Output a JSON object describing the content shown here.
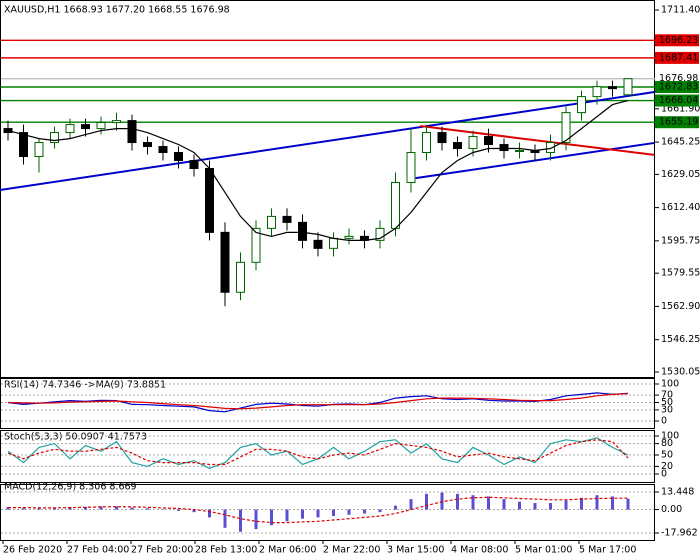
{
  "chart_data": [
    {
      "type": "candlestick",
      "title": "XAUUSD,H1  1668.93 1677.20 1668.55 1676.98",
      "up_color": "#006400",
      "down_color": "#000000",
      "open": [
        1652,
        1650,
        1638,
        1645,
        1650,
        1654,
        1652,
        1655,
        1656,
        1645,
        1643,
        1640,
        1636,
        1632,
        1600,
        1570,
        1585,
        1602,
        1608,
        1605,
        1596,
        1592,
        1597,
        1598,
        1596,
        1602,
        1625,
        1640,
        1650,
        1645,
        1642,
        1648,
        1644,
        1641,
        1641,
        1640,
        1645,
        1660,
        1668,
        1673,
        1668.93
      ],
      "high": [
        1656,
        1654,
        1647,
        1653,
        1657,
        1657,
        1658,
        1660,
        1659,
        1648,
        1646,
        1643,
        1639,
        1636,
        1605,
        1590,
        1606,
        1612,
        1612,
        1609,
        1600,
        1600,
        1602,
        1601,
        1606,
        1630,
        1652,
        1654,
        1653,
        1648,
        1651,
        1652,
        1647,
        1645,
        1644,
        1649,
        1663,
        1671,
        1676,
        1676,
        1677.2
      ],
      "low": [
        1646,
        1634,
        1630,
        1642,
        1647,
        1648,
        1649,
        1651,
        1641,
        1639,
        1636,
        1632,
        1628,
        1596,
        1563,
        1566,
        1581,
        1598,
        1601,
        1592,
        1588,
        1588,
        1594,
        1592,
        1592,
        1598,
        1620,
        1636,
        1641,
        1638,
        1638,
        1640,
        1637,
        1637,
        1636,
        1636,
        1641,
        1656,
        1664,
        1668,
        1668.55
      ],
      "close": [
        1650,
        1638,
        1645,
        1650,
        1654,
        1652,
        1655,
        1656,
        1645,
        1643,
        1640,
        1636,
        1632,
        1600,
        1570,
        1585,
        1602,
        1608,
        1605,
        1596,
        1592,
        1597,
        1598,
        1596,
        1602,
        1625,
        1640,
        1650,
        1645,
        1642,
        1648,
        1644,
        1641,
        1641,
        1640,
        1645,
        1660,
        1668,
        1673,
        1672,
        1676.98
      ],
      "ma": {
        "color": "#000000",
        "values": [
          1651,
          1649,
          1647,
          1646,
          1647,
          1649,
          1651,
          1652,
          1652,
          1650,
          1647,
          1644,
          1640,
          1632,
          1620,
          1608,
          1600,
          1598,
          1600,
          1600,
          1599,
          1597,
          1596,
          1596,
          1597,
          1602,
          1610,
          1620,
          1630,
          1636,
          1640,
          1642,
          1642,
          1642,
          1641,
          1642,
          1646,
          1652,
          1658,
          1664,
          1666
        ]
      },
      "trendlines": [
        {
          "color": "#0000cc",
          "x": [
            -0.52,
            41.7
          ],
          "y": [
            1621.2,
            1670.3
          ]
        },
        {
          "color": "#0000cc",
          "x": [
            26.3,
            41.7
          ],
          "y": [
            1627.2,
            1644.8
          ]
        },
        {
          "color": "#dd0000",
          "x": [
            26.6,
            41.7
          ],
          "y": [
            1653.3,
            1638.8
          ]
        }
      ],
      "levels": [
        {
          "value": 1696.23,
          "color": "#e00000"
        },
        {
          "value": 1687.41,
          "color": "#e00000"
        },
        {
          "value": 1676.98,
          "color": "#c0c0c0"
        },
        {
          "value": 1672.83,
          "color": "#008000"
        },
        {
          "value": 1666.04,
          "color": "#008000"
        },
        {
          "value": 1655.19,
          "color": "#008000"
        }
      ],
      "ylim": [
        1530.05,
        1711.4
      ],
      "yticks": [
        {
          "value": 1711.4,
          "label": "1711.40"
        },
        {
          "value": 1661.9,
          "label": "1661.90"
        },
        1645.25,
        1629.05,
        {
          "value": 1612.4,
          "label": "1612.40"
        },
        1595.75,
        1579.55,
        {
          "value": 1562.9,
          "label": "1562.90"
        },
        1546.25,
        1530.05
      ],
      "x_labels": [
        "26 Feb 2020",
        "27 Feb 04:00",
        "27 Feb 20:00",
        "28 Feb 13:00",
        "2 Mar 06:00",
        "2 Mar 22:00",
        "3 Mar 15:00",
        "4 Mar 08:00",
        "5 Mar 01:00",
        "5 Mar 17:00"
      ]
    },
    {
      "type": "line",
      "title": "RSI(14) 74.7346 ->MA(9) 73.8851",
      "ylim": [
        0,
        100
      ],
      "yticks": [
        100,
        70,
        50,
        30,
        0
      ],
      "series": [
        {
          "color": "#0000cc",
          "style": "solid",
          "values": [
            50,
            45,
            48,
            52,
            55,
            53,
            56,
            55,
            45,
            44,
            42,
            40,
            38,
            28,
            25,
            35,
            45,
            48,
            46,
            42,
            40,
            45,
            46,
            44,
            50,
            62,
            66,
            68,
            60,
            58,
            60,
            56,
            54,
            54,
            53,
            58,
            68,
            72,
            76,
            72,
            74.7346
          ]
        },
        {
          "color": "#dd0000",
          "style": "solid",
          "values": [
            50,
            49,
            48,
            49,
            51,
            52,
            53,
            54,
            52,
            50,
            47,
            44,
            42,
            38,
            34,
            33,
            35,
            38,
            42,
            44,
            44,
            44,
            44,
            44,
            46,
            50,
            55,
            60,
            62,
            62,
            61,
            60,
            58,
            56,
            55,
            55,
            58,
            62,
            68,
            72,
            73.8851
          ]
        }
      ]
    },
    {
      "type": "line",
      "title": "Stoch(5,3,3) 50.0907 41.7573",
      "ylim": [
        0,
        100
      ],
      "yticks": [
        100,
        80,
        50,
        20,
        0
      ],
      "series": [
        {
          "color": "#20a0a0",
          "style": "solid",
          "values": [
            60,
            30,
            70,
            80,
            40,
            75,
            60,
            85,
            30,
            20,
            40,
            25,
            35,
            15,
            30,
            70,
            80,
            50,
            60,
            25,
            40,
            70,
            40,
            60,
            85,
            90,
            55,
            80,
            40,
            30,
            70,
            50,
            25,
            45,
            30,
            80,
            90,
            85,
            95,
            70,
            50.0907
          ]
        },
        {
          "color": "#dd0000",
          "style": "dashed",
          "values": [
            55,
            40,
            55,
            65,
            60,
            60,
            65,
            70,
            55,
            35,
            30,
            30,
            30,
            25,
            25,
            45,
            65,
            65,
            60,
            45,
            40,
            50,
            55,
            50,
            65,
            80,
            75,
            70,
            60,
            45,
            50,
            55,
            45,
            40,
            35,
            55,
            75,
            85,
            90,
            85,
            41.7573
          ]
        }
      ]
    },
    {
      "type": "bar",
      "title": "MACD(12,26,9) 8.306 8.669",
      "ylim": [
        -21.8,
        18.05
      ],
      "yticks": [
        13.448,
        {
          "value": 0,
          "label": "0.00"
        },
        -17.962
      ],
      "series": [
        {
          "color": "#5a4fcf",
          "style": "bar",
          "values": [
            2,
            1,
            1,
            1.5,
            2,
            2,
            2.5,
            2.5,
            1.5,
            1,
            0,
            -1,
            -2,
            -6,
            -14,
            -17,
            -15,
            -12,
            -9,
            -7,
            -6,
            -5,
            -4,
            -3,
            -2,
            3,
            8,
            12,
            13,
            12,
            11,
            10,
            8,
            6,
            5,
            5,
            7,
            9,
            11,
            10,
            8.306
          ]
        },
        {
          "color": "#dd0000",
          "style": "dashed",
          "values": [
            1.5,
            1.5,
            1.3,
            1.3,
            1.5,
            1.7,
            2,
            2.2,
            2,
            1.8,
            1.3,
            0.8,
            0,
            -1.5,
            -4,
            -7,
            -9,
            -10,
            -10,
            -9.5,
            -9,
            -8,
            -7,
            -6,
            -5,
            -3,
            0,
            3,
            6,
            8,
            9,
            9.5,
            9,
            8.5,
            8,
            7.5,
            7.5,
            8,
            8.5,
            8.7,
            8.669
          ]
        }
      ]
    }
  ]
}
